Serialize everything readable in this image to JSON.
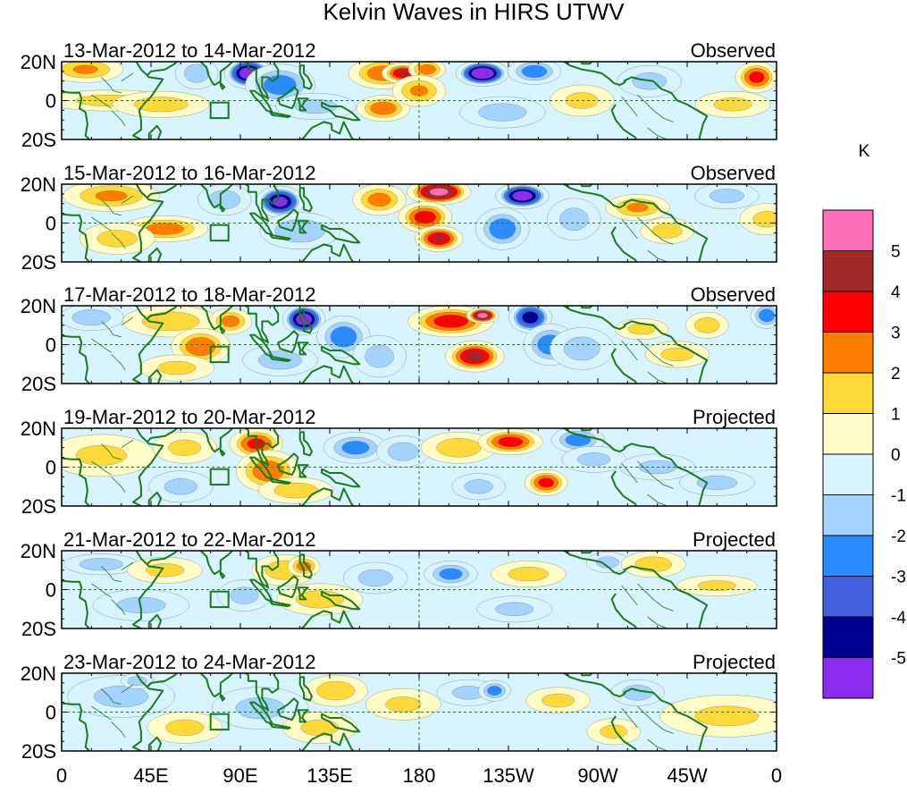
{
  "chart_data": {
    "type": "heatmap",
    "title": "Kelvin Waves in HIRS UTWV",
    "x_ticks": [
      "0",
      "45E",
      "90E",
      "135E",
      "180",
      "135W",
      "90W",
      "45W",
      "0"
    ],
    "x_tick_values_deg": [
      0,
      45,
      90,
      135,
      180,
      225,
      270,
      315,
      360
    ],
    "y_ticks": [
      "20N",
      "0",
      "20S"
    ],
    "y_tick_values_deg": [
      20,
      0,
      -20
    ],
    "xlim": [
      0,
      360
    ],
    "ylim": [
      -20,
      20
    ],
    "colorbar": {
      "unit_label": "K",
      "levels": [
        5,
        4,
        3,
        2,
        1,
        0,
        -1,
        -2,
        -3,
        -4,
        -5
      ],
      "level_labels": [
        "5",
        "4",
        "3",
        "2",
        "1",
        "0",
        "-1",
        "-2",
        "-3",
        "-4",
        "-5"
      ],
      "colors": [
        "#ff6fb7",
        "#a02828",
        "#ff0000",
        "#ff7d00",
        "#ffd93a",
        "#fffcc8",
        "#d8f5ff",
        "#a5d3ff",
        "#2a8cff",
        "#4060dc",
        "#000090",
        "#8b2cf0"
      ]
    },
    "panels": [
      {
        "date_range": "13-Mar-2012 to 14-Mar-2012",
        "kind": "Observed",
        "anomalies": [
          {
            "lon": 12,
            "lat": 16,
            "sx": 14,
            "sy": 5,
            "v": 2.0
          },
          {
            "lon": 25,
            "lat": 0,
            "sx": 25,
            "sy": 4,
            "v": 1.3
          },
          {
            "lon": 50,
            "lat": -2,
            "sx": 18,
            "sy": 5,
            "v": 1.4
          },
          {
            "lon": 68,
            "lat": 14,
            "sx": 8,
            "sy": 6,
            "v": -1.5
          },
          {
            "lon": 94,
            "lat": 14,
            "sx": 9,
            "sy": 6,
            "v": -5.8
          },
          {
            "lon": 110,
            "lat": 8,
            "sx": 13,
            "sy": 8,
            "v": -2.5
          },
          {
            "lon": 128,
            "lat": -3,
            "sx": 15,
            "sy": 5,
            "v": -1.3
          },
          {
            "lon": 162,
            "lat": 14,
            "sx": 13,
            "sy": 6,
            "v": 2.5
          },
          {
            "lon": 172,
            "lat": 14,
            "sx": 8,
            "sy": 4,
            "v": 4.0
          },
          {
            "lon": 162,
            "lat": -4,
            "sx": 10,
            "sy": 5,
            "v": 2.6
          },
          {
            "lon": 184,
            "lat": 16,
            "sx": 7,
            "sy": 4,
            "v": 2.5
          },
          {
            "lon": 180,
            "lat": 5,
            "sx": 10,
            "sy": 6,
            "v": 2.0
          },
          {
            "lon": 212,
            "lat": 14,
            "sx": 10,
            "sy": 5,
            "v": -6.2
          },
          {
            "lon": 238,
            "lat": 15,
            "sx": 10,
            "sy": 5,
            "v": -2.5
          },
          {
            "lon": 222,
            "lat": -6,
            "sx": 16,
            "sy": 6,
            "v": -1.4
          },
          {
            "lon": 262,
            "lat": 0,
            "sx": 12,
            "sy": 6,
            "v": 1.2
          },
          {
            "lon": 296,
            "lat": 10,
            "sx": 12,
            "sy": 6,
            "v": -1.3
          },
          {
            "lon": 338,
            "lat": -2,
            "sx": 14,
            "sy": 5,
            "v": 1.2
          },
          {
            "lon": 350,
            "lat": 12,
            "sx": 8,
            "sy": 6,
            "v": 3.3
          }
        ]
      },
      {
        "date_range": "15-Mar-2012 to 16-Mar-2012",
        "kind": "Observed",
        "anomalies": [
          {
            "lon": 25,
            "lat": 14,
            "sx": 18,
            "sy": 6,
            "v": 2.0
          },
          {
            "lon": 52,
            "lat": -3,
            "sx": 16,
            "sy": 5,
            "v": 2.4
          },
          {
            "lon": 28,
            "lat": -8,
            "sx": 14,
            "sy": 6,
            "v": 1.3
          },
          {
            "lon": 82,
            "lat": 12,
            "sx": 10,
            "sy": 6,
            "v": -1.6
          },
          {
            "lon": 110,
            "lat": 11,
            "sx": 9,
            "sy": 6,
            "v": -5.4
          },
          {
            "lon": 120,
            "lat": -4,
            "sx": 15,
            "sy": 7,
            "v": -1.8
          },
          {
            "lon": 160,
            "lat": 12,
            "sx": 10,
            "sy": 6,
            "v": 2.3
          },
          {
            "lon": 190,
            "lat": 16,
            "sx": 12,
            "sy": 5,
            "v": 5.3
          },
          {
            "lon": 183,
            "lat": 3,
            "sx": 10,
            "sy": 6,
            "v": 3.5
          },
          {
            "lon": 190,
            "lat": -8,
            "sx": 9,
            "sy": 5,
            "v": 4.0
          },
          {
            "lon": 232,
            "lat": 14,
            "sx": 10,
            "sy": 5,
            "v": -5.8
          },
          {
            "lon": 222,
            "lat": -3,
            "sx": 10,
            "sy": 8,
            "v": -2.6
          },
          {
            "lon": 258,
            "lat": 2,
            "sx": 10,
            "sy": 8,
            "v": -1.3
          },
          {
            "lon": 290,
            "lat": 8,
            "sx": 12,
            "sy": 5,
            "v": 2.0
          },
          {
            "lon": 305,
            "lat": -4,
            "sx": 10,
            "sy": 5,
            "v": 1.4
          },
          {
            "lon": 335,
            "lat": 14,
            "sx": 12,
            "sy": 5,
            "v": -1.3
          },
          {
            "lon": 355,
            "lat": 2,
            "sx": 10,
            "sy": 6,
            "v": 1.2
          }
        ]
      },
      {
        "date_range": "17-Mar-2012 to 18-Mar-2012",
        "kind": "Observed",
        "anomalies": [
          {
            "lon": 15,
            "lat": 14,
            "sx": 12,
            "sy": 5,
            "v": -1.6
          },
          {
            "lon": 55,
            "lat": 12,
            "sx": 18,
            "sy": 6,
            "v": 1.6
          },
          {
            "lon": 70,
            "lat": -1,
            "sx": 11,
            "sy": 7,
            "v": 2.7
          },
          {
            "lon": 85,
            "lat": 12,
            "sx": 8,
            "sy": 5,
            "v": 2.3
          },
          {
            "lon": 58,
            "lat": -12,
            "sx": 14,
            "sy": 5,
            "v": 1.2
          },
          {
            "lon": 122,
            "lat": 13,
            "sx": 8,
            "sy": 6,
            "v": -5.8
          },
          {
            "lon": 142,
            "lat": 4,
            "sx": 10,
            "sy": 8,
            "v": -2.6
          },
          {
            "lon": 110,
            "lat": -8,
            "sx": 14,
            "sy": 6,
            "v": -1.5
          },
          {
            "lon": 160,
            "lat": -6,
            "sx": 10,
            "sy": 8,
            "v": -1.3
          },
          {
            "lon": 196,
            "lat": 12,
            "sx": 16,
            "sy": 6,
            "v": 3.5
          },
          {
            "lon": 212,
            "lat": 15,
            "sx": 6,
            "sy": 3,
            "v": 5.5
          },
          {
            "lon": 208,
            "lat": -6,
            "sx": 11,
            "sy": 6,
            "v": 4.2
          },
          {
            "lon": 236,
            "lat": 14,
            "sx": 8,
            "sy": 6,
            "v": -4.6
          },
          {
            "lon": 246,
            "lat": 0,
            "sx": 10,
            "sy": 8,
            "v": -2.5
          },
          {
            "lon": 262,
            "lat": -2,
            "sx": 12,
            "sy": 8,
            "v": -1.4
          },
          {
            "lon": 292,
            "lat": 8,
            "sx": 10,
            "sy": 4,
            "v": 1.2
          },
          {
            "lon": 325,
            "lat": 10,
            "sx": 8,
            "sy": 5,
            "v": 1.5
          },
          {
            "lon": 310,
            "lat": -5,
            "sx": 12,
            "sy": 5,
            "v": 1.2
          },
          {
            "lon": 355,
            "lat": 15,
            "sx": 6,
            "sy": 5,
            "v": -2.6
          }
        ]
      },
      {
        "date_range": "19-Mar-2012 to 20-Mar-2012",
        "kind": "Projected",
        "anomalies": [
          {
            "lon": 20,
            "lat": 6,
            "sx": 20,
            "sy": 8,
            "v": 1.1
          },
          {
            "lon": 62,
            "lat": 10,
            "sx": 12,
            "sy": 6,
            "v": 1.2
          },
          {
            "lon": 60,
            "lat": -10,
            "sx": 12,
            "sy": 6,
            "v": -1.2
          },
          {
            "lon": 98,
            "lat": 12,
            "sx": 10,
            "sy": 6,
            "v": 3.2
          },
          {
            "lon": 104,
            "lat": -2,
            "sx": 12,
            "sy": 8,
            "v": 2.6
          },
          {
            "lon": 118,
            "lat": -12,
            "sx": 14,
            "sy": 5,
            "v": 1.5
          },
          {
            "lon": 148,
            "lat": 10,
            "sx": 12,
            "sy": 6,
            "v": -2.3
          },
          {
            "lon": 172,
            "lat": 8,
            "sx": 10,
            "sy": 6,
            "v": -1.5
          },
          {
            "lon": 200,
            "lat": 10,
            "sx": 14,
            "sy": 6,
            "v": 1.6
          },
          {
            "lon": 226,
            "lat": 13,
            "sx": 12,
            "sy": 5,
            "v": 3.4
          },
          {
            "lon": 244,
            "lat": -8,
            "sx": 8,
            "sy": 5,
            "v": 3.3
          },
          {
            "lon": 260,
            "lat": 14,
            "sx": 10,
            "sy": 5,
            "v": -2.5
          },
          {
            "lon": 268,
            "lat": 4,
            "sx": 12,
            "sy": 5,
            "v": -1.2
          },
          {
            "lon": 210,
            "lat": -10,
            "sx": 10,
            "sy": 5,
            "v": -1.3
          },
          {
            "lon": 300,
            "lat": 0,
            "sx": 14,
            "sy": 5,
            "v": -1.2
          },
          {
            "lon": 330,
            "lat": -8,
            "sx": 14,
            "sy": 5,
            "v": -1.3
          }
        ]
      },
      {
        "date_range": "21-Mar-2012 to 22-Mar-2012",
        "kind": "Projected",
        "anomalies": [
          {
            "lon": 20,
            "lat": 13,
            "sx": 14,
            "sy": 4,
            "v": -1.5
          },
          {
            "lon": 40,
            "lat": -8,
            "sx": 18,
            "sy": 6,
            "v": -1.2
          },
          {
            "lon": 52,
            "lat": 10,
            "sx": 14,
            "sy": 5,
            "v": 1.2
          },
          {
            "lon": 92,
            "lat": -3,
            "sx": 10,
            "sy": 6,
            "v": -1.3
          },
          {
            "lon": 112,
            "lat": 10,
            "sx": 12,
            "sy": 6,
            "v": 1.6
          },
          {
            "lon": 122,
            "lat": 12,
            "sx": 6,
            "sy": 4,
            "v": 2.4
          },
          {
            "lon": 130,
            "lat": -5,
            "sx": 16,
            "sy": 6,
            "v": 1.4
          },
          {
            "lon": 158,
            "lat": 6,
            "sx": 12,
            "sy": 6,
            "v": -1.3
          },
          {
            "lon": 196,
            "lat": 8,
            "sx": 10,
            "sy": 5,
            "v": -2.3
          },
          {
            "lon": 235,
            "lat": 8,
            "sx": 14,
            "sy": 5,
            "v": 1.3
          },
          {
            "lon": 228,
            "lat": -10,
            "sx": 14,
            "sy": 5,
            "v": -1.2
          },
          {
            "lon": 275,
            "lat": 14,
            "sx": 8,
            "sy": 4,
            "v": -1.3
          },
          {
            "lon": 298,
            "lat": 13,
            "sx": 12,
            "sy": 5,
            "v": 1.5
          },
          {
            "lon": 330,
            "lat": 2,
            "sx": 15,
            "sy": 4,
            "v": 1.1
          }
        ]
      },
      {
        "date_range": "23-Mar-2012 to 24-Mar-2012",
        "kind": "Projected",
        "anomalies": [
          {
            "lon": 30,
            "lat": 8,
            "sx": 20,
            "sy": 8,
            "v": -1.2
          },
          {
            "lon": 38,
            "lat": 16,
            "sx": 6,
            "sy": 3,
            "v": -1.6
          },
          {
            "lon": 62,
            "lat": -8,
            "sx": 14,
            "sy": 6,
            "v": 1.2
          },
          {
            "lon": 100,
            "lat": 2,
            "sx": 18,
            "sy": 8,
            "v": -1.2
          },
          {
            "lon": 138,
            "lat": 11,
            "sx": 12,
            "sy": 6,
            "v": 1.6
          },
          {
            "lon": 130,
            "lat": -8,
            "sx": 14,
            "sy": 6,
            "v": 1.2
          },
          {
            "lon": 172,
            "lat": 4,
            "sx": 14,
            "sy": 6,
            "v": 1.1
          },
          {
            "lon": 205,
            "lat": 10,
            "sx": 12,
            "sy": 5,
            "v": -1.2
          },
          {
            "lon": 218,
            "lat": 11,
            "sx": 6,
            "sy": 4,
            "v": -2.4
          },
          {
            "lon": 250,
            "lat": 6,
            "sx": 12,
            "sy": 5,
            "v": 1.2
          },
          {
            "lon": 290,
            "lat": 10,
            "sx": 10,
            "sy": 5,
            "v": -1.5
          },
          {
            "lon": 278,
            "lat": -10,
            "sx": 10,
            "sy": 5,
            "v": 1.2
          },
          {
            "lon": 335,
            "lat": -2,
            "sx": 25,
            "sy": 8,
            "v": 1.1
          }
        ]
      }
    ]
  }
}
